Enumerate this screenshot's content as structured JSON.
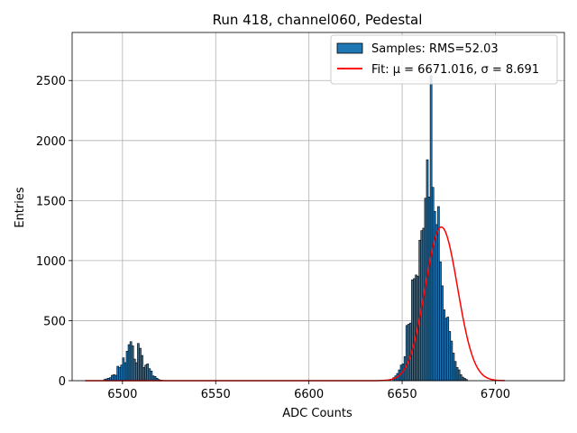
{
  "chart_data": {
    "type": "bar",
    "title": "Run 418, channel060, Pedestal",
    "xlabel": "ADC Counts",
    "ylabel": "Entries",
    "xlim": [
      6473,
      6737
    ],
    "ylim": [
      0,
      2900
    ],
    "xticks": [
      6500,
      6550,
      6600,
      6650,
      6700
    ],
    "yticks": [
      0,
      500,
      1000,
      1500,
      2000,
      2500
    ],
    "grid": true,
    "legend_position": "top-right",
    "colors": {
      "bars": "#1f77b4",
      "bar_edge": "#000000",
      "fit": "#ff0000"
    },
    "histogram": {
      "bin_width": 1,
      "bins": [
        [
          6490,
          10
        ],
        [
          6491,
          15
        ],
        [
          6492,
          20
        ],
        [
          6493,
          25
        ],
        [
          6494,
          45
        ],
        [
          6495,
          50
        ],
        [
          6496,
          45
        ],
        [
          6497,
          120
        ],
        [
          6498,
          110
        ],
        [
          6499,
          130
        ],
        [
          6500,
          190
        ],
        [
          6501,
          150
        ],
        [
          6502,
          245
        ],
        [
          6503,
          300
        ],
        [
          6504,
          325
        ],
        [
          6505,
          290
        ],
        [
          6506,
          180
        ],
        [
          6507,
          150
        ],
        [
          6508,
          310
        ],
        [
          6509,
          270
        ],
        [
          6510,
          210
        ],
        [
          6511,
          110
        ],
        [
          6512,
          130
        ],
        [
          6513,
          140
        ],
        [
          6514,
          100
        ],
        [
          6515,
          80
        ],
        [
          6516,
          40
        ],
        [
          6517,
          35
        ],
        [
          6518,
          20
        ],
        [
          6519,
          10
        ],
        [
          6520,
          5
        ],
        [
          6521,
          3
        ],
        [
          6643,
          10
        ],
        [
          6645,
          25
        ],
        [
          6646,
          40
        ],
        [
          6647,
          60
        ],
        [
          6648,
          90
        ],
        [
          6649,
          130
        ],
        [
          6650,
          140
        ],
        [
          6651,
          200
        ],
        [
          6652,
          460
        ],
        [
          6653,
          470
        ],
        [
          6654,
          480
        ],
        [
          6655,
          840
        ],
        [
          6656,
          850
        ],
        [
          6657,
          880
        ],
        [
          6658,
          870
        ],
        [
          6659,
          1170
        ],
        [
          6660,
          1250
        ],
        [
          6661,
          1270
        ],
        [
          6662,
          1520
        ],
        [
          6663,
          1840
        ],
        [
          6664,
          1530
        ],
        [
          6665,
          2540
        ],
        [
          6666,
          1610
        ],
        [
          6667,
          1410
        ],
        [
          6668,
          1300
        ],
        [
          6669,
          1450
        ],
        [
          6670,
          990
        ],
        [
          6671,
          790
        ],
        [
          6672,
          590
        ],
        [
          6673,
          520
        ],
        [
          6674,
          530
        ],
        [
          6675,
          410
        ],
        [
          6676,
          330
        ],
        [
          6677,
          230
        ],
        [
          6678,
          160
        ],
        [
          6679,
          110
        ],
        [
          6680,
          90
        ],
        [
          6681,
          50
        ],
        [
          6682,
          30
        ],
        [
          6683,
          20
        ],
        [
          6684,
          10
        ]
      ]
    },
    "fit": {
      "type": "gaussian",
      "mu": 6671.016,
      "sigma": 8.691,
      "amplitude": 1280,
      "x_range": [
        6480,
        6705
      ]
    },
    "legend": [
      {
        "kind": "bar",
        "label": "Samples: RMS=52.03"
      },
      {
        "kind": "line",
        "label": "Fit: μ = 6671.016, σ = 8.691"
      }
    ]
  }
}
